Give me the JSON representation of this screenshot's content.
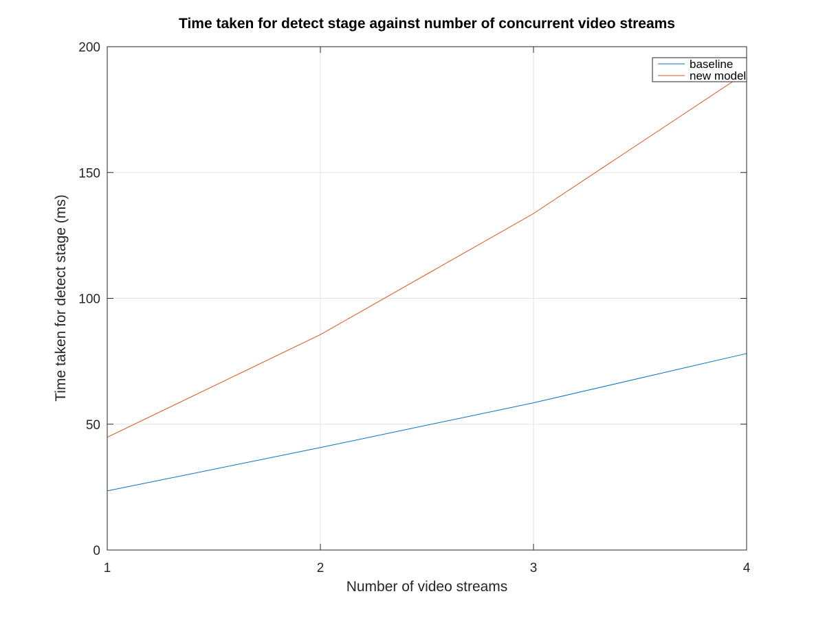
{
  "chart_data": {
    "type": "line",
    "title": "Time taken for detect stage against number of concurrent video streams",
    "xlabel": "Number of video streams",
    "ylabel": "Time taken for detect stage (ms)",
    "x": [
      1,
      2,
      3,
      4
    ],
    "xlim": [
      1,
      4
    ],
    "ylim": [
      0,
      200
    ],
    "xticks": [
      1,
      2,
      3,
      4
    ],
    "yticks": [
      0,
      50,
      100,
      150,
      200
    ],
    "xtick_labels": [
      "1",
      "2",
      "3",
      "4"
    ],
    "ytick_labels": [
      "0",
      "50",
      "100",
      "150",
      "200"
    ],
    "grid": true,
    "legend_position": "top-right",
    "series": [
      {
        "name": "baseline",
        "color": "#0072bd",
        "values": [
          23.5,
          40.7,
          58.5,
          78.1
        ]
      },
      {
        "name": "new model",
        "color": "#d95319",
        "values": [
          44.8,
          85.6,
          133.7,
          189.8
        ]
      }
    ]
  }
}
